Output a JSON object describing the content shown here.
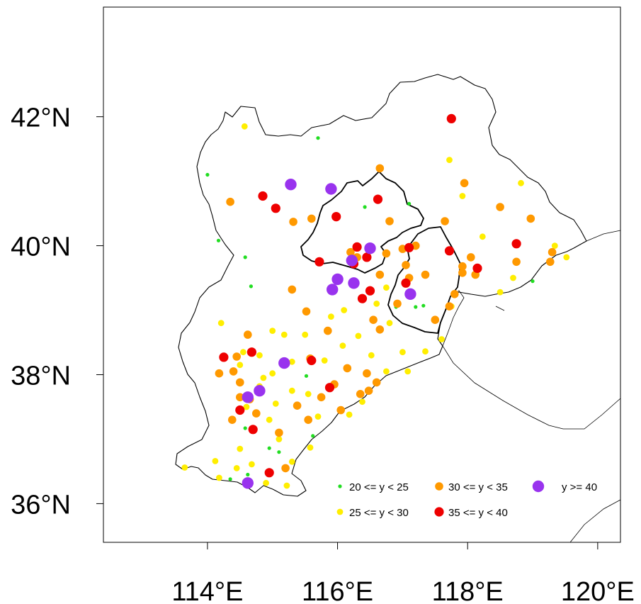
{
  "chart_data": {
    "type": "scatter",
    "title": "",
    "xlim": [
      112.4,
      120.35
    ],
    "ylim": [
      35.4,
      43.7
    ],
    "x_ticks": [
      {
        "value": 114,
        "label": "114°E"
      },
      {
        "value": 116,
        "label": "116°E"
      },
      {
        "value": 118,
        "label": "118°E"
      },
      {
        "value": 120,
        "label": "120°E"
      }
    ],
    "y_ticks": [
      {
        "value": 42,
        "label": "42°N"
      },
      {
        "value": 40,
        "label": "40°N"
      },
      {
        "value": 38,
        "label": "38°N"
      },
      {
        "value": 36,
        "label": "36°N"
      }
    ],
    "legend_position": "bottom-right",
    "series": [
      {
        "name": "20 <= y < 25",
        "color": "#22dd22",
        "points": [
          [
            114.0,
            41.1
          ],
          [
            114.17,
            40.08
          ],
          [
            114.58,
            39.82
          ],
          [
            114.67,
            39.37
          ],
          [
            115.7,
            41.67
          ],
          [
            116.42,
            40.6
          ],
          [
            117.1,
            40.65
          ],
          [
            114.58,
            37.17
          ],
          [
            114.95,
            36.86
          ],
          [
            115.1,
            36.8
          ],
          [
            114.62,
            36.45
          ],
          [
            114.35,
            36.38
          ],
          [
            115.62,
            37.05
          ],
          [
            115.52,
            37.98
          ],
          [
            116.9,
            39.05
          ],
          [
            117.2,
            39.05
          ],
          [
            117.32,
            39.07
          ],
          [
            119.0,
            39.45
          ]
        ]
      },
      {
        "name": "25 <= y < 30",
        "color": "#ffee00",
        "points": [
          [
            114.57,
            41.85
          ],
          [
            117.72,
            41.33
          ],
          [
            117.92,
            40.77
          ],
          [
            118.23,
            40.14
          ],
          [
            118.82,
            40.97
          ],
          [
            119.34,
            40.0
          ],
          [
            119.52,
            39.82
          ],
          [
            118.7,
            39.5
          ],
          [
            118.5,
            39.28
          ],
          [
            117.75,
            39.06
          ],
          [
            117.35,
            38.36
          ],
          [
            117.08,
            38.05
          ],
          [
            117.6,
            38.55
          ],
          [
            114.21,
            38.8
          ],
          [
            114.55,
            38.35
          ],
          [
            114.6,
            37.5
          ],
          [
            114.8,
            37.82
          ],
          [
            115.0,
            38.68
          ],
          [
            115.18,
            38.62
          ],
          [
            115.5,
            38.62
          ],
          [
            115.8,
            38.22
          ],
          [
            116.08,
            38.45
          ],
          [
            116.32,
            38.6
          ],
          [
            116.52,
            38.3
          ],
          [
            115.3,
            36.65
          ],
          [
            115.58,
            36.87
          ],
          [
            115.3,
            37.75
          ],
          [
            115.7,
            37.35
          ],
          [
            114.95,
            37.3
          ],
          [
            115.1,
            37.0
          ],
          [
            114.5,
            36.85
          ],
          [
            114.12,
            36.66
          ],
          [
            113.65,
            36.56
          ],
          [
            114.18,
            36.4
          ],
          [
            114.45,
            36.55
          ],
          [
            114.68,
            36.61
          ],
          [
            114.9,
            36.32
          ],
          [
            115.22,
            36.28
          ],
          [
            114.5,
            38.15
          ],
          [
            115.0,
            38.02
          ],
          [
            115.9,
            38.9
          ],
          [
            116.1,
            39.0
          ],
          [
            116.75,
            38.05
          ],
          [
            116.75,
            39.35
          ],
          [
            116.6,
            39.1
          ],
          [
            116.8,
            38.8
          ],
          [
            117.0,
            38.35
          ],
          [
            114.8,
            38.3
          ],
          [
            115.3,
            38.2
          ],
          [
            114.86,
            37.95
          ],
          [
            115.05,
            37.55
          ],
          [
            116.18,
            37.38
          ],
          [
            116.38,
            37.58
          ],
          [
            115.55,
            37.7
          ]
        ]
      },
      {
        "name": "30 <= y < 35",
        "color": "#ff9900",
        "points": [
          [
            114.35,
            40.68
          ],
          [
            115.32,
            40.37
          ],
          [
            115.6,
            40.42
          ],
          [
            116.65,
            41.2
          ],
          [
            117.65,
            40.38
          ],
          [
            117.95,
            40.97
          ],
          [
            118.5,
            40.6
          ],
          [
            118.97,
            40.42
          ],
          [
            119.3,
            39.9
          ],
          [
            119.27,
            39.75
          ],
          [
            118.75,
            39.75
          ],
          [
            117.92,
            39.58
          ],
          [
            117.8,
            39.25
          ],
          [
            117.72,
            39.06
          ],
          [
            117.5,
            38.85
          ],
          [
            117.35,
            39.55
          ],
          [
            117.1,
            39.5
          ],
          [
            116.92,
            39.1
          ],
          [
            116.65,
            38.7
          ],
          [
            116.55,
            38.85
          ],
          [
            115.85,
            38.68
          ],
          [
            115.58,
            38.25
          ],
          [
            115.52,
            38.98
          ],
          [
            115.3,
            39.32
          ],
          [
            116.15,
            38.1
          ],
          [
            116.45,
            38.02
          ],
          [
            116.6,
            37.88
          ],
          [
            116.48,
            37.75
          ],
          [
            116.35,
            37.7
          ],
          [
            116.05,
            37.45
          ],
          [
            115.95,
            37.85
          ],
          [
            115.75,
            37.65
          ],
          [
            115.55,
            37.3
          ],
          [
            115.38,
            37.52
          ],
          [
            115.1,
            37.1
          ],
          [
            114.62,
            38.62
          ],
          [
            114.45,
            38.28
          ],
          [
            114.4,
            38.05
          ],
          [
            114.18,
            38.02
          ],
          [
            114.5,
            37.65
          ],
          [
            114.65,
            37.62
          ],
          [
            114.75,
            37.4
          ],
          [
            114.5,
            37.88
          ],
          [
            115.2,
            36.55
          ],
          [
            114.38,
            37.3
          ],
          [
            118.05,
            39.82
          ],
          [
            118.12,
            39.55
          ],
          [
            117.92,
            39.68
          ],
          [
            117.2,
            40.0
          ],
          [
            117.05,
            39.7
          ],
          [
            116.75,
            39.88
          ],
          [
            116.65,
            39.55
          ],
          [
            116.3,
            39.82
          ],
          [
            116.2,
            39.9
          ],
          [
            117.0,
            39.95
          ],
          [
            116.8,
            40.38
          ]
        ]
      },
      {
        "name": "35 <= y < 40",
        "color": "#ee0000",
        "points": [
          [
            117.75,
            41.97
          ],
          [
            114.85,
            40.77
          ],
          [
            115.05,
            40.58
          ],
          [
            115.98,
            40.45
          ],
          [
            116.62,
            40.72
          ],
          [
            117.1,
            39.97
          ],
          [
            116.3,
            39.98
          ],
          [
            116.25,
            39.72
          ],
          [
            116.45,
            39.82
          ],
          [
            115.72,
            39.75
          ],
          [
            117.72,
            39.92
          ],
          [
            118.75,
            40.03
          ],
          [
            118.15,
            39.65
          ],
          [
            117.05,
            39.42
          ],
          [
            116.5,
            39.3
          ],
          [
            116.38,
            39.18
          ],
          [
            114.25,
            38.27
          ],
          [
            114.68,
            38.35
          ],
          [
            115.6,
            38.22
          ],
          [
            115.88,
            37.8
          ],
          [
            114.5,
            37.45
          ],
          [
            114.7,
            37.15
          ],
          [
            114.95,
            36.48
          ]
        ]
      },
      {
        "name": "y >= 40",
        "color": "#9933ee",
        "points": [
          [
            115.28,
            40.95
          ],
          [
            115.9,
            40.88
          ],
          [
            116.5,
            39.96
          ],
          [
            116.22,
            39.77
          ],
          [
            116.0,
            39.48
          ],
          [
            115.92,
            39.32
          ],
          [
            116.25,
            39.42
          ],
          [
            117.12,
            39.25
          ],
          [
            115.18,
            38.18
          ],
          [
            114.8,
            37.75
          ],
          [
            114.62,
            37.65
          ],
          [
            114.62,
            36.32
          ]
        ]
      }
    ]
  }
}
